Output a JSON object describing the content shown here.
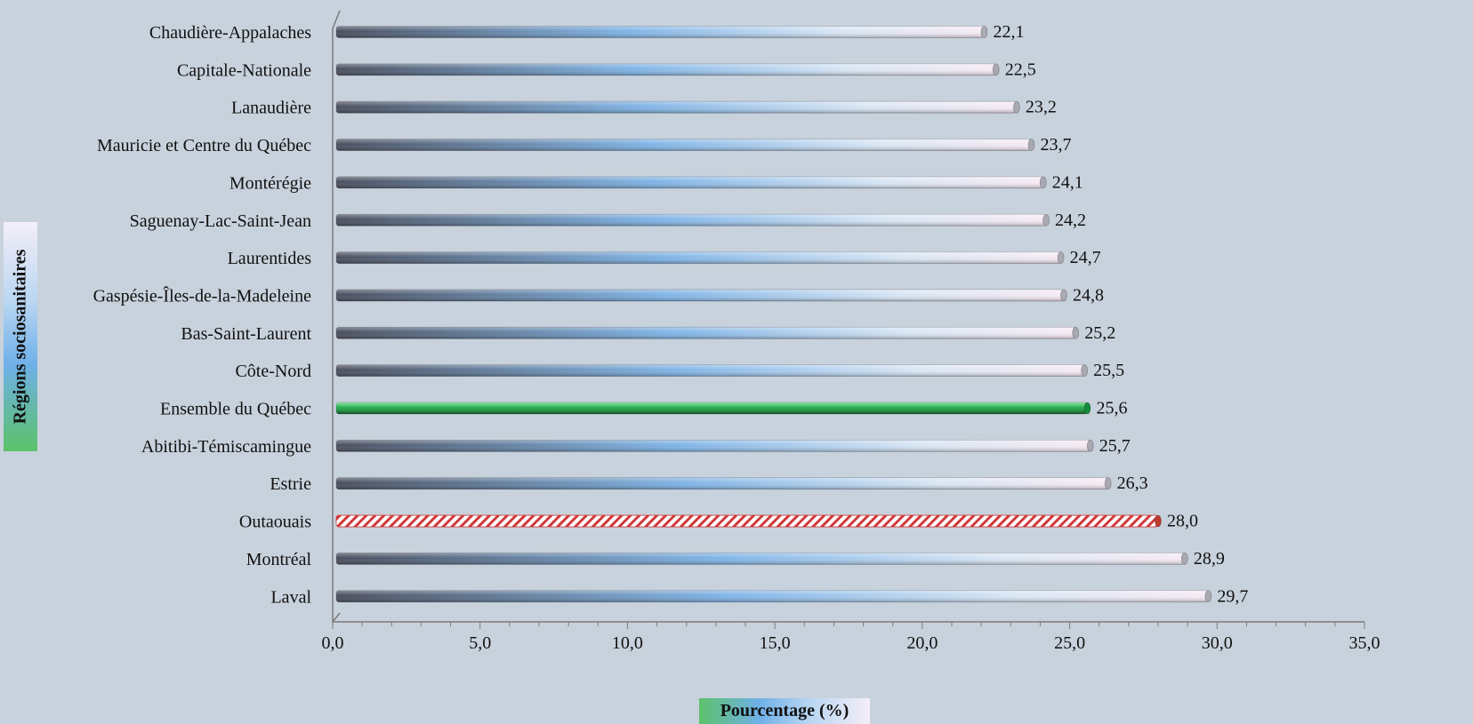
{
  "chart_data": {
    "type": "bar",
    "orientation": "horizontal",
    "categories": [
      "Chaudière-Appalaches",
      "Capitale-Nationale",
      "Lanaudière",
      "Mauricie et Centre du Québec",
      "Montérégie",
      "Saguenay-Lac-Saint-Jean",
      "Laurentides",
      "Gaspésie-Îles-de-la-Madeleine",
      "Bas-Saint-Laurent",
      "Côte-Nord",
      "Ensemble du Québec",
      "Abitibi-Témiscamingue",
      "Estrie",
      "Outaouais",
      "Montréal",
      "Laval"
    ],
    "values": [
      22.1,
      22.5,
      23.2,
      23.7,
      24.1,
      24.2,
      24.7,
      24.8,
      25.2,
      25.5,
      25.6,
      25.7,
      26.3,
      28.0,
      28.9,
      29.7
    ],
    "value_labels": [
      "22,1",
      "22,5",
      "23,2",
      "23,7",
      "24,1",
      "24,2",
      "24,7",
      "24,8",
      "25,2",
      "25,5",
      "25,6",
      "25,7",
      "26,3",
      "28,0",
      "28,9",
      "29,7"
    ],
    "highlights": {
      "Ensemble du Québec": "green",
      "Outaouais": "red-hatched"
    },
    "xlabel": "Pourcentage (%)",
    "ylabel": "Régions sociosanitaires",
    "xlim": [
      0,
      35
    ],
    "x_ticks": [
      0,
      5,
      10,
      15,
      20,
      25,
      30,
      35
    ],
    "x_tick_labels": [
      "0,0",
      "5,0",
      "10,0",
      "15,0",
      "20,0",
      "25,0",
      "30,0",
      "35,0"
    ],
    "grid": false,
    "legend": "none"
  },
  "colors": {
    "background": "#c8d2dc",
    "bar_dark": "#4a4f5e",
    "bar_blue": "#7fb4e6",
    "bar_light": "#f6eaf4",
    "highlight_green": "#22a84a",
    "highlight_red": "#d0393a",
    "axis": "#7a7a7a"
  }
}
